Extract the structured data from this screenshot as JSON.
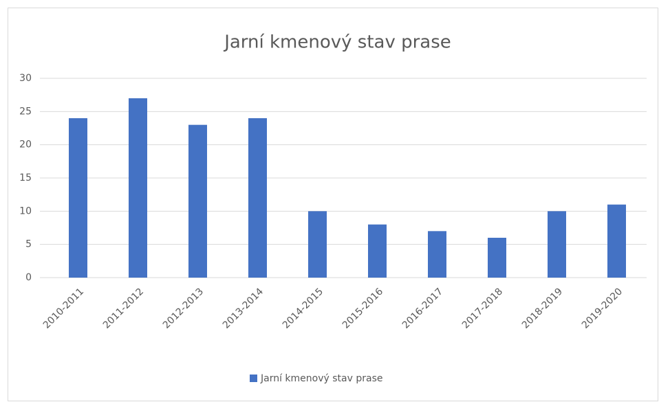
{
  "chart_data": {
    "type": "bar",
    "title": "Jarní kmenový stav prase",
    "categories": [
      "2010-2011",
      "2011-2012",
      "2012-2013",
      "2013-2014",
      "2014-2015",
      "2015-2016",
      "2016-2017",
      "2017-2018",
      "2018-2019",
      "2019-2020"
    ],
    "series": [
      {
        "name": "Jarní kmenový stav prase",
        "color": "#4472c4",
        "values": [
          24,
          27,
          23,
          24,
          10,
          8,
          7,
          6,
          10,
          11
        ]
      }
    ],
    "ylim": [
      0,
      30
    ],
    "yticks": [
      0,
      5,
      10,
      15,
      20,
      25,
      30
    ],
    "grid": true,
    "legend": "bottom"
  }
}
